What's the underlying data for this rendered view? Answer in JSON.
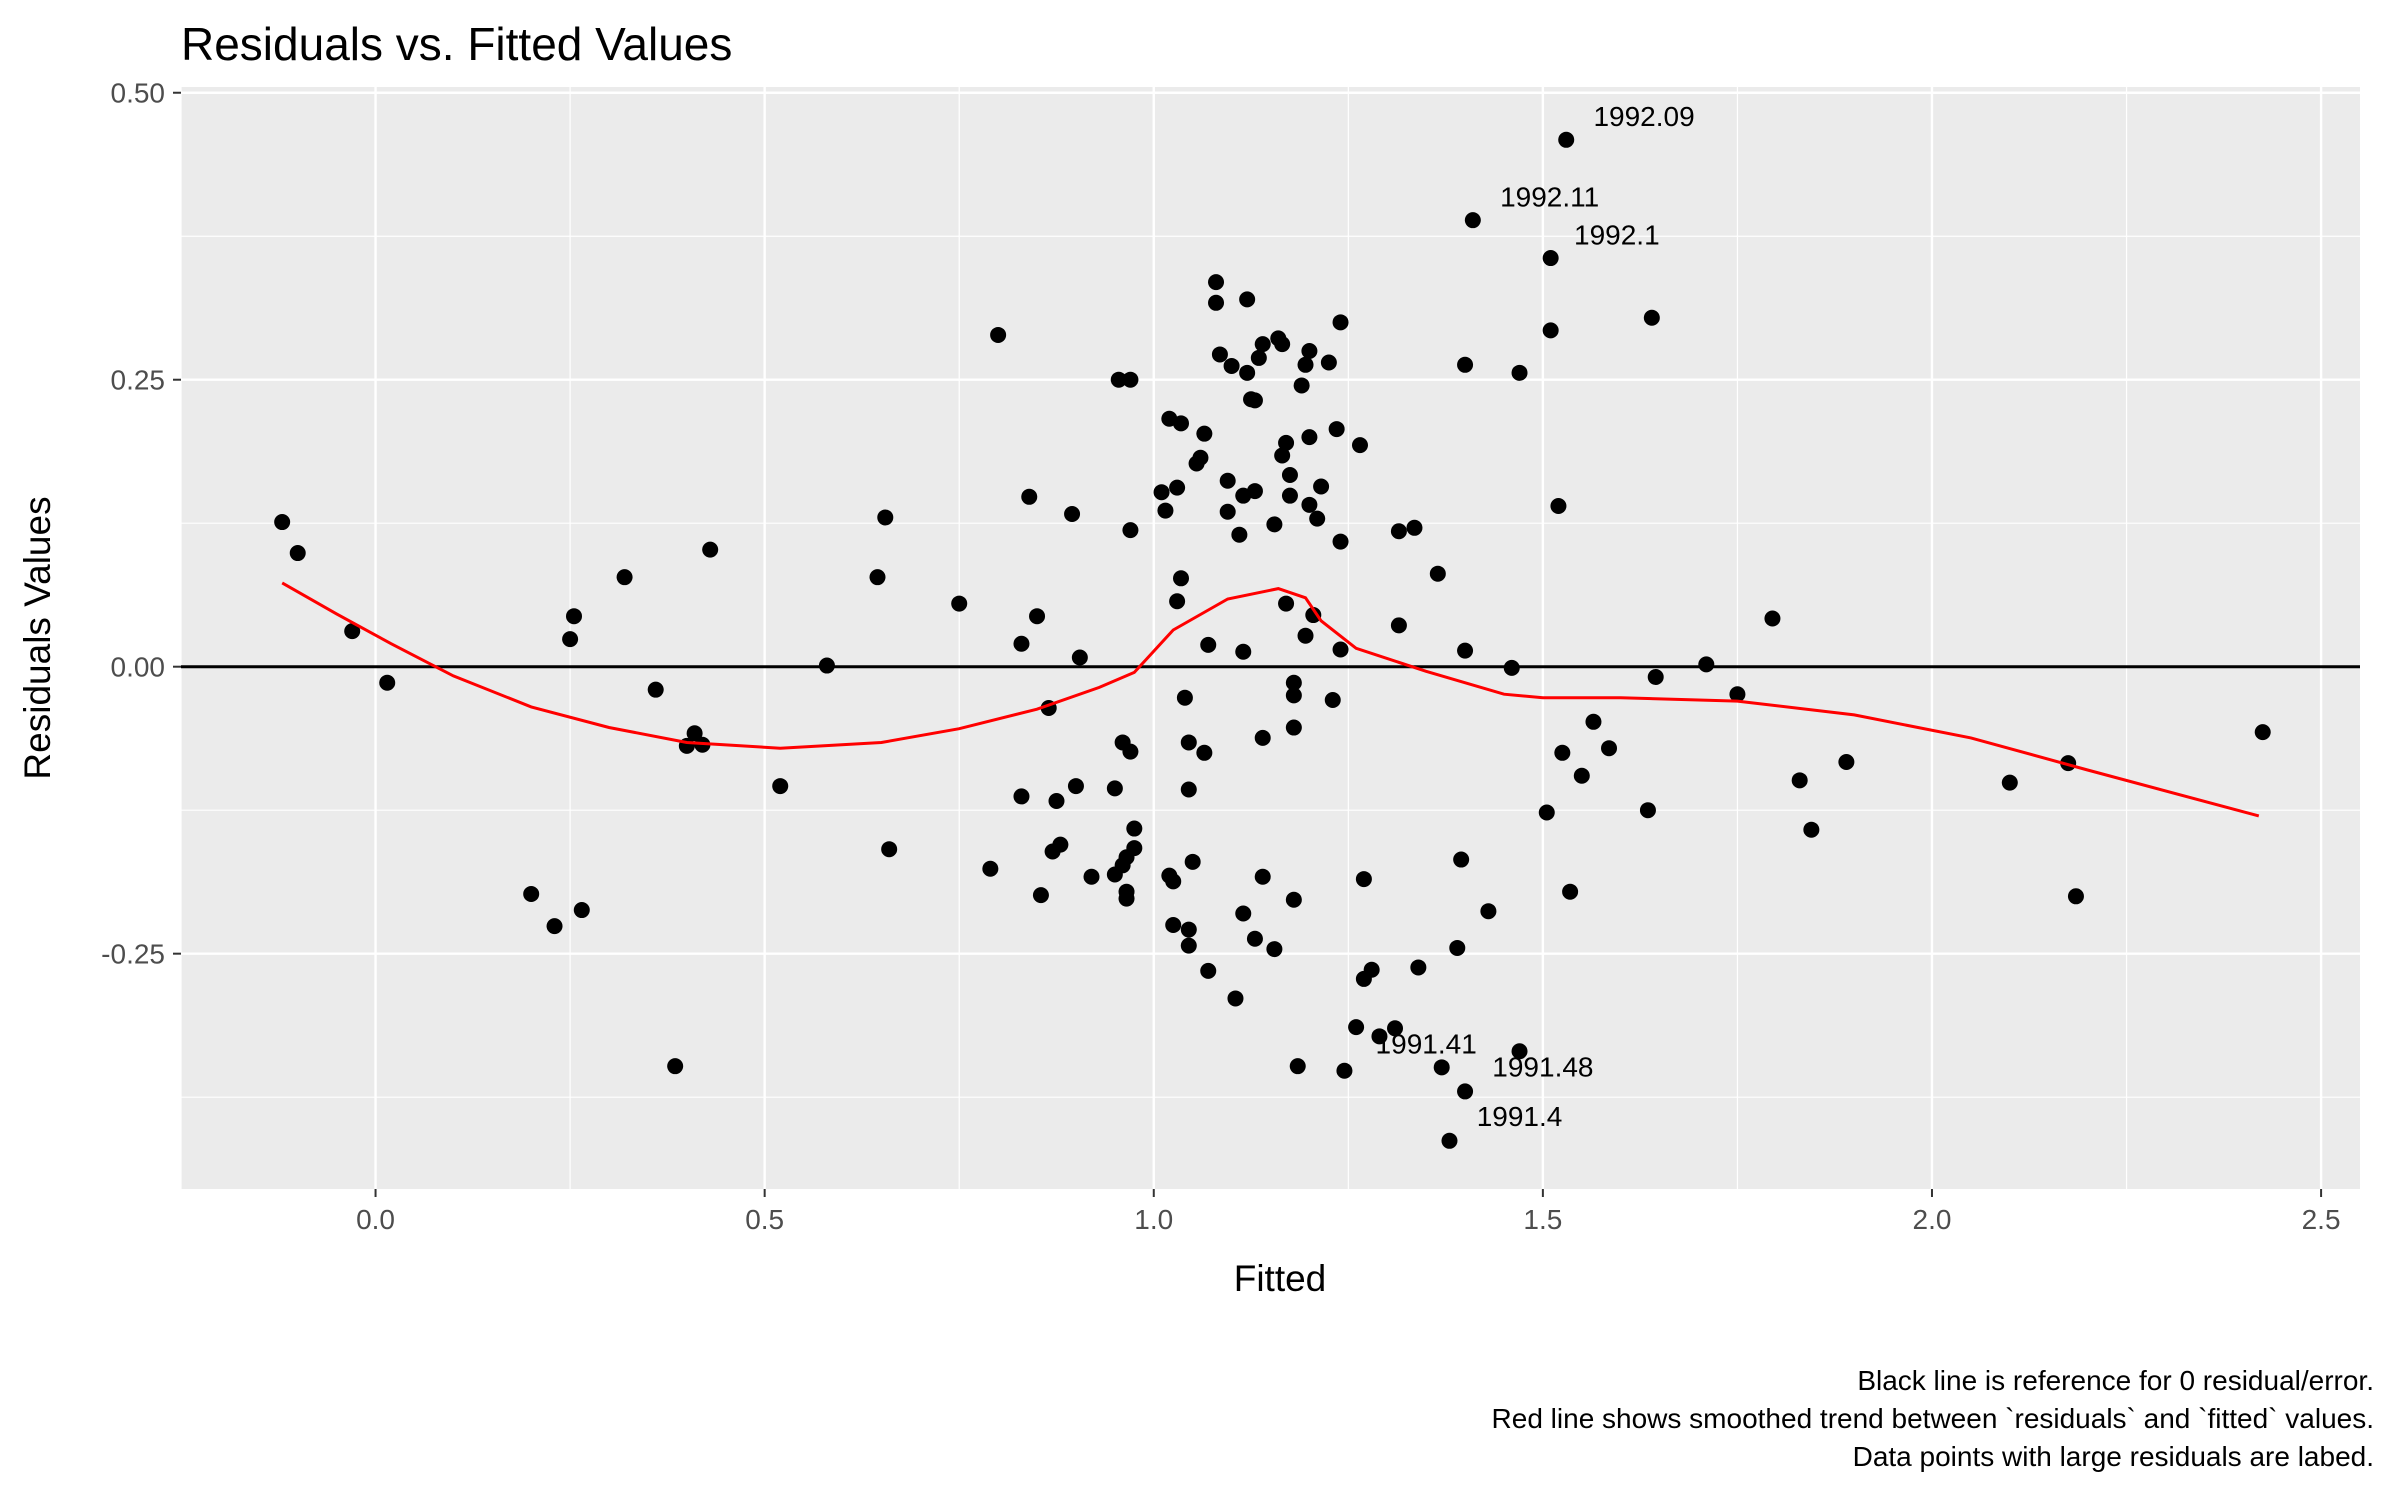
{
  "chart_data": {
    "type": "scatter",
    "title": "Residuals vs. Fitted Values",
    "xlabel": "Fitted",
    "ylabel": "Residuals Values",
    "xlim": [
      -0.25,
      2.55
    ],
    "ylim": [
      -0.455,
      0.505
    ],
    "x_ticks": [
      0.0,
      0.5,
      1.0,
      1.5,
      2.0,
      2.5
    ],
    "x_tick_labels": [
      "0.0",
      "0.5",
      "1.0",
      "1.5",
      "2.0",
      "2.5"
    ],
    "y_ticks": [
      0.5,
      0.25,
      0.0,
      -0.25
    ],
    "y_tick_labels": [
      "0.50",
      "0.25",
      "0.00",
      "-0.25"
    ],
    "grid": true,
    "reference_line": {
      "y": 0,
      "color": "#000000"
    },
    "trend_color": "#ff0000",
    "point_color": "#000000",
    "panel_color": "#ebebeb",
    "caption": [
      "Black line is reference for 0 residual/error.",
      "Red line shows smoothed trend between `residuals` and `fitted` values.",
      "Data points with large residuals are labed."
    ],
    "points": [
      [
        -0.12,
        0.126
      ],
      [
        -0.1,
        0.099
      ],
      [
        -0.03,
        0.031
      ],
      [
        0.015,
        -0.014
      ],
      [
        0.2,
        -0.198
      ],
      [
        0.23,
        -0.226
      ],
      [
        0.25,
        0.024
      ],
      [
        0.255,
        0.044
      ],
      [
        0.265,
        -0.212
      ],
      [
        0.32,
        0.078
      ],
      [
        0.36,
        -0.02
      ],
      [
        0.385,
        -0.348
      ],
      [
        0.4,
        -0.069
      ],
      [
        0.41,
        -0.058
      ],
      [
        0.42,
        -0.068
      ],
      [
        0.43,
        0.102
      ],
      [
        0.52,
        -0.104
      ],
      [
        0.58,
        0.001
      ],
      [
        0.645,
        0.078
      ],
      [
        0.655,
        0.13
      ],
      [
        0.66,
        -0.159
      ],
      [
        0.75,
        0.055
      ],
      [
        0.79,
        -0.176
      ],
      [
        0.8,
        0.289
      ],
      [
        0.83,
        0.02
      ],
      [
        0.83,
        -0.113
      ],
      [
        0.84,
        0.148
      ],
      [
        0.85,
        0.044
      ],
      [
        0.855,
        -0.199
      ],
      [
        0.865,
        -0.036
      ],
      [
        0.87,
        -0.161
      ],
      [
        0.88,
        -0.155
      ],
      [
        0.875,
        -0.117
      ],
      [
        0.895,
        0.133
      ],
      [
        0.9,
        -0.104
      ],
      [
        0.905,
        0.008
      ],
      [
        0.92,
        -0.183
      ],
      [
        0.95,
        -0.106
      ],
      [
        0.95,
        -0.181
      ],
      [
        0.955,
        0.25
      ],
      [
        0.96,
        -0.066
      ],
      [
        0.96,
        -0.173
      ],
      [
        0.965,
        -0.166
      ],
      [
        0.965,
        -0.202
      ],
      [
        0.965,
        -0.196
      ],
      [
        0.97,
        0.119
      ],
      [
        0.97,
        0.25
      ],
      [
        0.97,
        -0.074
      ],
      [
        0.975,
        -0.141
      ],
      [
        0.975,
        -0.158
      ],
      [
        1.01,
        0.152
      ],
      [
        1.015,
        0.136
      ],
      [
        1.02,
        0.216
      ],
      [
        1.02,
        -0.182
      ],
      [
        1.025,
        -0.187
      ],
      [
        1.025,
        -0.225
      ],
      [
        1.03,
        0.156
      ],
      [
        1.03,
        0.057
      ],
      [
        1.035,
        0.212
      ],
      [
        1.035,
        0.077
      ],
      [
        1.04,
        -0.027
      ],
      [
        1.045,
        -0.066
      ],
      [
        1.045,
        -0.107
      ],
      [
        1.045,
        -0.229
      ],
      [
        1.045,
        -0.243
      ],
      [
        1.05,
        -0.17
      ],
      [
        1.055,
        0.177
      ],
      [
        1.06,
        0.182
      ],
      [
        1.065,
        0.203
      ],
      [
        1.065,
        -0.075
      ],
      [
        1.07,
        0.019
      ],
      [
        1.07,
        -0.265
      ],
      [
        1.08,
        0.335
      ],
      [
        1.08,
        0.317
      ],
      [
        1.085,
        0.272
      ],
      [
        1.095,
        0.162
      ],
      [
        1.095,
        0.135
      ],
      [
        1.1,
        0.262
      ],
      [
        1.105,
        -0.289
      ],
      [
        1.11,
        0.115
      ],
      [
        1.115,
        0.149
      ],
      [
        1.115,
        -0.215
      ],
      [
        1.115,
        0.013
      ],
      [
        1.12,
        0.32
      ],
      [
        1.12,
        0.256
      ],
      [
        1.125,
        0.233
      ],
      [
        1.13,
        0.232
      ],
      [
        1.13,
        0.153
      ],
      [
        1.13,
        -0.237
      ],
      [
        1.135,
        0.269
      ],
      [
        1.14,
        0.281
      ],
      [
        1.14,
        -0.062
      ],
      [
        1.14,
        -0.183
      ],
      [
        1.155,
        0.124
      ],
      [
        1.155,
        -0.246
      ],
      [
        1.16,
        0.286
      ],
      [
        1.165,
        0.281
      ],
      [
        1.165,
        0.184
      ],
      [
        1.17,
        0.195
      ],
      [
        1.17,
        0.055
      ],
      [
        1.175,
        0.167
      ],
      [
        1.175,
        0.149
      ],
      [
        1.18,
        -0.014
      ],
      [
        1.18,
        -0.025
      ],
      [
        1.18,
        -0.053
      ],
      [
        1.18,
        -0.203
      ],
      [
        1.185,
        -0.348
      ],
      [
        1.19,
        0.245
      ],
      [
        1.195,
        0.263
      ],
      [
        1.195,
        0.027
      ],
      [
        1.2,
        0.141
      ],
      [
        1.2,
        0.2
      ],
      [
        1.2,
        0.275
      ],
      [
        1.205,
        0.045
      ],
      [
        1.21,
        0.129
      ],
      [
        1.215,
        0.157
      ],
      [
        1.225,
        0.265
      ],
      [
        1.23,
        -0.029
      ],
      [
        1.235,
        0.207
      ],
      [
        1.24,
        0.3
      ],
      [
        1.24,
        0.109
      ],
      [
        1.24,
        0.015
      ],
      [
        1.245,
        -0.352
      ],
      [
        1.26,
        -0.314
      ],
      [
        1.265,
        0.193
      ],
      [
        1.27,
        -0.185
      ],
      [
        1.27,
        -0.272
      ],
      [
        1.28,
        -0.264
      ],
      [
        1.29,
        -0.322
      ],
      [
        1.31,
        -0.315
      ],
      [
        1.315,
        0.118
      ],
      [
        1.315,
        0.036
      ],
      [
        1.335,
        0.121
      ],
      [
        1.34,
        -0.262
      ],
      [
        1.365,
        0.081
      ],
      [
        1.37,
        -0.349
      ],
      [
        1.38,
        -0.413
      ],
      [
        1.39,
        -0.245
      ],
      [
        1.395,
        -0.168
      ],
      [
        1.4,
        0.014
      ],
      [
        1.4,
        0.263
      ],
      [
        1.4,
        -0.37
      ],
      [
        1.41,
        0.389
      ],
      [
        1.43,
        -0.213
      ],
      [
        1.46,
        -0.001
      ],
      [
        1.47,
        0.256
      ],
      [
        1.47,
        -0.335
      ],
      [
        1.505,
        -0.127
      ],
      [
        1.51,
        0.293
      ],
      [
        1.51,
        0.356
      ],
      [
        1.52,
        0.14
      ],
      [
        1.525,
        -0.075
      ],
      [
        1.53,
        0.459
      ],
      [
        1.535,
        -0.196
      ],
      [
        1.55,
        -0.095
      ],
      [
        1.565,
        -0.048
      ],
      [
        1.585,
        -0.071
      ],
      [
        1.635,
        -0.125
      ],
      [
        1.64,
        0.304
      ],
      [
        1.645,
        -0.009
      ],
      [
        1.71,
        0.002
      ],
      [
        1.75,
        -0.024
      ],
      [
        1.795,
        0.042
      ],
      [
        1.83,
        -0.099
      ],
      [
        1.845,
        -0.142
      ],
      [
        1.89,
        -0.083
      ],
      [
        2.1,
        -0.101
      ],
      [
        2.175,
        -0.084
      ],
      [
        2.185,
        -0.2
      ],
      [
        2.425,
        -0.057
      ]
    ],
    "labeled_points": [
      {
        "x": 1.53,
        "y": 0.459,
        "label": "1992.09",
        "dx": 0.035,
        "dy": 0.012
      },
      {
        "x": 1.41,
        "y": 0.389,
        "label": "1992.11",
        "dx": 0.035,
        "dy": 0.012
      },
      {
        "x": 1.51,
        "y": 0.356,
        "label": "1992.1",
        "dx": 0.03,
        "dy": 0.012
      },
      {
        "x": 1.37,
        "y": -0.349,
        "label": "1991.41",
        "dx": -0.085,
        "dy": 0.012
      },
      {
        "x": 1.4,
        "y": -0.37,
        "label": "1991.48",
        "dx": 0.035,
        "dy": 0.013
      },
      {
        "x": 1.38,
        "y": -0.413,
        "label": "1991.4",
        "dx": 0.035,
        "dy": 0.013
      }
    ],
    "trend": [
      [
        -0.12,
        0.073
      ],
      [
        -0.05,
        0.046
      ],
      [
        0.02,
        0.02
      ],
      [
        0.1,
        -0.008
      ],
      [
        0.2,
        -0.035
      ],
      [
        0.3,
        -0.053
      ],
      [
        0.4,
        -0.066
      ],
      [
        0.52,
        -0.071
      ],
      [
        0.65,
        -0.066
      ],
      [
        0.75,
        -0.054
      ],
      [
        0.85,
        -0.037
      ],
      [
        0.93,
        -0.018
      ],
      [
        0.975,
        -0.005
      ],
      [
        1.025,
        0.032
      ],
      [
        1.095,
        0.059
      ],
      [
        1.16,
        0.068
      ],
      [
        1.195,
        0.06
      ],
      [
        1.215,
        0.04
      ],
      [
        1.26,
        0.016
      ],
      [
        1.35,
        -0.004
      ],
      [
        1.45,
        -0.024
      ],
      [
        1.5,
        -0.027
      ],
      [
        1.6,
        -0.027
      ],
      [
        1.75,
        -0.03
      ],
      [
        1.9,
        -0.042
      ],
      [
        2.05,
        -0.062
      ],
      [
        2.2,
        -0.09
      ],
      [
        2.42,
        -0.13
      ]
    ]
  }
}
